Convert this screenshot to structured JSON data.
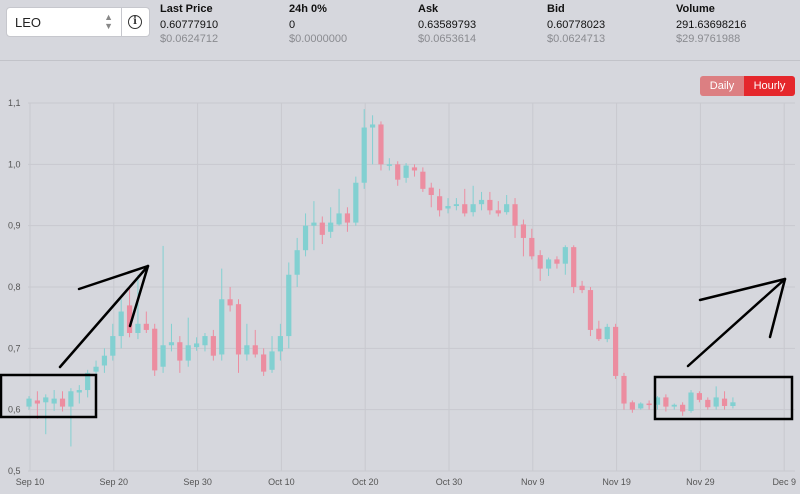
{
  "header": {
    "pair_select": {
      "value": "LEO"
    },
    "stats": [
      {
        "label": "Last Price",
        "value": "0.60777910",
        "sub": "$0.0624712"
      },
      {
        "label": "24h 0%",
        "value": "0",
        "sub": "$0.0000000"
      },
      {
        "label": "Ask",
        "value": "0.63589793",
        "sub": "$0.0653614"
      },
      {
        "label": "Bid",
        "value": "0.60778023",
        "sub": "$0.0624713"
      },
      {
        "label": "Volume",
        "value": "291.63698216",
        "sub": "$29.9761988"
      }
    ]
  },
  "tabs": {
    "daily": "Daily",
    "hourly": "Hourly",
    "active": "Hourly"
  },
  "colors": {
    "up": "#82d0d1",
    "down": "#ec8da0",
    "active_tab": "#e5272c",
    "inactive_tab": "#dc7f82"
  },
  "chart_data": {
    "type": "candlestick",
    "y_ticks": [
      "0,5",
      "0,6",
      "0,7",
      "0,8",
      "0,9",
      "1,0",
      "1,1"
    ],
    "ylim": [
      0.5,
      1.1
    ],
    "x_ticks": [
      {
        "label": "Sep 10",
        "day": 0
      },
      {
        "label": "Sep 20",
        "day": 10
      },
      {
        "label": "Sep 30",
        "day": 20
      },
      {
        "label": "Oct 10",
        "day": 30
      },
      {
        "label": "Oct 20",
        "day": 40
      },
      {
        "label": "Oct 30",
        "day": 50
      },
      {
        "label": "Nov 9",
        "day": 60
      },
      {
        "label": "Nov 19",
        "day": 70
      },
      {
        "label": "Nov 29",
        "day": 80
      },
      {
        "label": "Dec 9",
        "day": 90
      }
    ],
    "candles": [
      [
        0.605,
        0.618,
        0.6,
        0.622
      ],
      [
        0.615,
        0.61,
        0.585,
        0.63
      ],
      [
        0.612,
        0.62,
        0.56,
        0.625
      ],
      [
        0.61,
        0.618,
        0.598,
        0.632
      ],
      [
        0.618,
        0.605,
        0.597,
        0.63
      ],
      [
        0.605,
        0.63,
        0.54,
        0.635
      ],
      [
        0.628,
        0.632,
        0.61,
        0.64
      ],
      [
        0.632,
        0.66,
        0.62,
        0.665
      ],
      [
        0.662,
        0.67,
        0.64,
        0.68
      ],
      [
        0.672,
        0.688,
        0.66,
        0.7
      ],
      [
        0.688,
        0.72,
        0.68,
        0.74
      ],
      [
        0.72,
        0.76,
        0.7,
        0.78
      ],
      [
        0.77,
        0.725,
        0.718,
        0.8
      ],
      [
        0.725,
        0.74,
        0.715,
        0.82
      ],
      [
        0.74,
        0.73,
        0.725,
        0.76
      ],
      [
        0.732,
        0.664,
        0.655,
        0.74
      ],
      [
        0.67,
        0.705,
        0.66,
        0.867
      ],
      [
        0.705,
        0.71,
        0.695,
        0.74
      ],
      [
        0.71,
        0.68,
        0.66,
        0.72
      ],
      [
        0.68,
        0.705,
        0.67,
        0.75
      ],
      [
        0.702,
        0.708,
        0.696,
        0.718
      ],
      [
        0.705,
        0.72,
        0.695,
        0.725
      ],
      [
        0.72,
        0.688,
        0.68,
        0.73
      ],
      [
        0.69,
        0.78,
        0.68,
        0.83
      ],
      [
        0.78,
        0.77,
        0.76,
        0.8
      ],
      [
        0.772,
        0.69,
        0.66,
        0.78
      ],
      [
        0.69,
        0.705,
        0.68,
        0.74
      ],
      [
        0.705,
        0.69,
        0.685,
        0.73
      ],
      [
        0.69,
        0.662,
        0.655,
        0.7
      ],
      [
        0.665,
        0.695,
        0.66,
        0.72
      ],
      [
        0.695,
        0.72,
        0.68,
        0.74
      ],
      [
        0.72,
        0.82,
        0.7,
        0.84
      ],
      [
        0.82,
        0.86,
        0.8,
        0.88
      ],
      [
        0.86,
        0.9,
        0.85,
        0.92
      ],
      [
        0.9,
        0.905,
        0.86,
        0.94
      ],
      [
        0.905,
        0.885,
        0.87,
        0.915
      ],
      [
        0.89,
        0.905,
        0.88,
        0.93
      ],
      [
        0.902,
        0.92,
        0.9,
        0.96
      ],
      [
        0.92,
        0.905,
        0.89,
        0.93
      ],
      [
        0.905,
        0.97,
        0.9,
        0.98
      ],
      [
        0.97,
        1.06,
        0.96,
        1.09
      ],
      [
        1.06,
        1.065,
        1.0,
        1.08
      ],
      [
        1.065,
        1.0,
        0.99,
        1.07
      ],
      [
        1.0,
        1.0,
        0.99,
        1.01
      ],
      [
        1.0,
        0.975,
        0.965,
        1.005
      ],
      [
        0.978,
        0.998,
        0.97,
        1.002
      ],
      [
        0.995,
        0.99,
        0.98,
        1.0
      ],
      [
        0.988,
        0.96,
        0.955,
        0.995
      ],
      [
        0.962,
        0.95,
        0.93,
        0.97
      ],
      [
        0.948,
        0.925,
        0.915,
        0.96
      ],
      [
        0.928,
        0.932,
        0.92,
        0.945
      ],
      [
        0.932,
        0.935,
        0.925,
        0.945
      ],
      [
        0.935,
        0.92,
        0.915,
        0.96
      ],
      [
        0.922,
        0.935,
        0.915,
        0.965
      ],
      [
        0.935,
        0.942,
        0.925,
        0.955
      ],
      [
        0.942,
        0.925,
        0.918,
        0.955
      ],
      [
        0.925,
        0.92,
        0.915,
        0.94
      ],
      [
        0.922,
        0.935,
        0.918,
        0.95
      ],
      [
        0.935,
        0.9,
        0.88,
        0.945
      ],
      [
        0.902,
        0.88,
        0.85,
        0.91
      ],
      [
        0.88,
        0.85,
        0.845,
        0.895
      ],
      [
        0.852,
        0.83,
        0.81,
        0.86
      ],
      [
        0.83,
        0.845,
        0.818,
        0.848
      ],
      [
        0.845,
        0.838,
        0.83,
        0.85
      ],
      [
        0.838,
        0.865,
        0.82,
        0.868
      ],
      [
        0.865,
        0.8,
        0.79,
        0.868
      ],
      [
        0.802,
        0.795,
        0.79,
        0.81
      ],
      [
        0.795,
        0.73,
        0.72,
        0.8
      ],
      [
        0.732,
        0.715,
        0.712,
        0.745
      ],
      [
        0.715,
        0.735,
        0.71,
        0.74
      ],
      [
        0.735,
        0.655,
        0.65,
        0.74
      ],
      [
        0.655,
        0.61,
        0.6,
        0.66
      ],
      [
        0.612,
        0.6,
        0.595,
        0.615
      ],
      [
        0.602,
        0.61,
        0.6,
        0.612
      ],
      [
        0.61,
        0.608,
        0.6,
        0.615
      ],
      [
        0.608,
        0.62,
        0.6,
        0.622
      ],
      [
        0.62,
        0.605,
        0.597,
        0.625
      ],
      [
        0.605,
        0.608,
        0.6,
        0.61
      ],
      [
        0.608,
        0.597,
        0.59,
        0.612
      ],
      [
        0.598,
        0.628,
        0.595,
        0.632
      ],
      [
        0.627,
        0.616,
        0.612,
        0.63
      ],
      [
        0.616,
        0.604,
        0.6,
        0.62
      ],
      [
        0.605,
        0.62,
        0.6,
        0.638
      ],
      [
        0.618,
        0.606,
        0.6,
        0.63
      ],
      [
        0.606,
        0.612,
        0.602,
        0.62
      ]
    ],
    "annotations": [
      {
        "type": "box",
        "label": ""
      },
      {
        "type": "arrow",
        "label": ""
      },
      {
        "type": "box",
        "label": ""
      },
      {
        "type": "arrow",
        "label": ""
      }
    ]
  }
}
